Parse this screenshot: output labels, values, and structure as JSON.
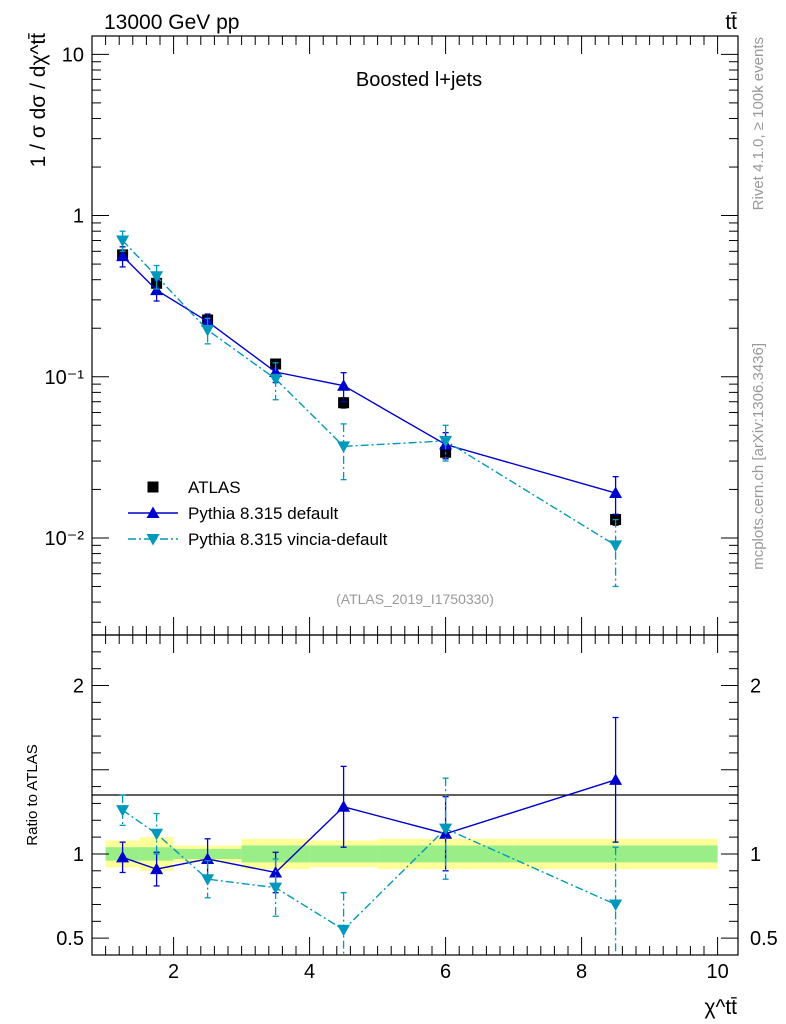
{
  "header": {
    "left": "13000 GeV pp",
    "right": "tt̄"
  },
  "side": {
    "top": "Rivet 4.1.0, ≥ 100k events",
    "bottom": "mcplots.cern.ch [arXiv:1306.3436]"
  },
  "chart_data": [
    {
      "type": "scatter",
      "title": "Boosted l+jets",
      "analysis_label": "(ATLAS_2019_I1750330)",
      "ylabel": "1 / σ dσ / dχ^tt̄",
      "yscale": "log",
      "ylim": [
        0.0025,
        13
      ],
      "xlim": [
        0.8,
        10.3
      ],
      "y_ticks": [
        {
          "value": 10,
          "label": "10"
        },
        {
          "value": 1,
          "label": "1"
        },
        {
          "value": 0.1,
          "label": "10⁻¹"
        },
        {
          "value": 0.01,
          "label": "10⁻²"
        }
      ],
      "legend": [
        {
          "name": "ATLAS",
          "marker": "square",
          "color": "#000000"
        },
        {
          "name": "Pythia 8.315 default",
          "marker": "triangle-up",
          "color": "#0000cc"
        },
        {
          "name": "Pythia 8.315 vincia-default",
          "marker": "triangle-down",
          "color": "#0099bb"
        }
      ],
      "series": [
        {
          "name": "ATLAS",
          "x": [
            1.25,
            1.75,
            2.5,
            3.5,
            4.5,
            6.0,
            8.5
          ],
          "y": [
            0.57,
            0.38,
            0.225,
            0.12,
            0.069,
            0.034,
            0.013
          ],
          "err": [
            0.04,
            0.03,
            0.015,
            0.008,
            0.005,
            0.003,
            0.001
          ]
        },
        {
          "name": "Pythia 8.315 default",
          "x": [
            1.25,
            1.75,
            2.5,
            3.5,
            4.5,
            6.0,
            8.5
          ],
          "y": [
            0.56,
            0.345,
            0.22,
            0.107,
            0.088,
            0.038,
            0.019
          ],
          "err": [
            0.08,
            0.05,
            0.025,
            0.015,
            0.018,
            0.007,
            0.005
          ]
        },
        {
          "name": "Pythia 8.315 vincia-default",
          "x": [
            1.25,
            1.75,
            2.5,
            3.5,
            4.5,
            6.0,
            8.5
          ],
          "y": [
            0.7,
            0.42,
            0.195,
            0.097,
            0.037,
            0.04,
            0.009
          ],
          "err": [
            0.1,
            0.07,
            0.035,
            0.025,
            0.014,
            0.01,
            0.004
          ]
        }
      ]
    },
    {
      "type": "scatter",
      "ylabel": "Ratio to ATLAS",
      "xlabel": "χ^tt̄",
      "ylim": [
        0.4,
        2.3
      ],
      "xlim": [
        0.8,
        10.3
      ],
      "y_ticks": [
        {
          "value": 2,
          "label": "2"
        },
        {
          "value": 1,
          "label": "1"
        },
        {
          "value": 0.5,
          "label": "0.5"
        }
      ],
      "x_ticks": [
        {
          "value": 2,
          "label": "2"
        },
        {
          "value": 4,
          "label": "4"
        },
        {
          "value": 6,
          "label": "6"
        },
        {
          "value": 8,
          "label": "8"
        },
        {
          "value": 10,
          "label": "10"
        }
      ],
      "bands": [
        {
          "x0": 1.0,
          "x1": 1.5,
          "stat": 0.04,
          "total": 0.08
        },
        {
          "x0": 1.5,
          "x1": 2.0,
          "stat": 0.04,
          "total": 0.1
        },
        {
          "x0": 2.0,
          "x1": 3.0,
          "stat": 0.03,
          "total": 0.05
        },
        {
          "x0": 3.0,
          "x1": 4.0,
          "stat": 0.05,
          "total": 0.09
        },
        {
          "x0": 4.0,
          "x1": 5.0,
          "stat": 0.05,
          "total": 0.08
        },
        {
          "x0": 5.0,
          "x1": 7.0,
          "stat": 0.05,
          "total": 0.09
        },
        {
          "x0": 7.0,
          "x1": 10.0,
          "stat": 0.05,
          "total": 0.09
        }
      ],
      "series": [
        {
          "name": "Pythia 8.315 default",
          "x": [
            1.25,
            1.75,
            2.5,
            3.5,
            4.5,
            6.0,
            8.5
          ],
          "y": [
            0.98,
            0.91,
            0.97,
            0.89,
            1.28,
            1.12,
            1.44
          ],
          "err": [
            0.09,
            0.1,
            0.12,
            0.12,
            0.24,
            0.22,
            0.37
          ]
        },
        {
          "name": "Pythia 8.315 vincia-default",
          "x": [
            1.25,
            1.75,
            2.5,
            3.5,
            4.5,
            6.0,
            8.5
          ],
          "y": [
            1.26,
            1.12,
            0.85,
            0.8,
            0.55,
            1.15,
            0.7
          ],
          "err": [
            0.09,
            0.12,
            0.11,
            0.17,
            0.22,
            0.3,
            0.34
          ]
        }
      ]
    }
  ]
}
